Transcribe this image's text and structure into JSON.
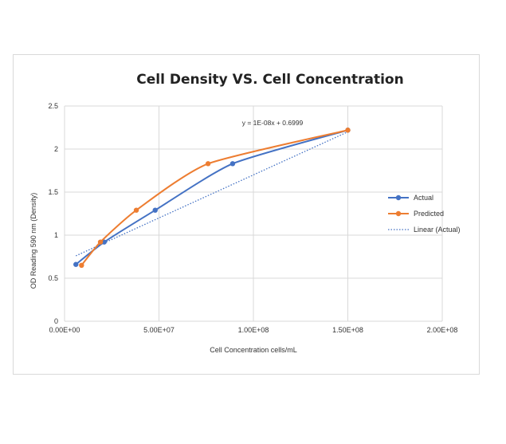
{
  "chart_data": {
    "type": "line",
    "title": "Cell Density VS. Cell Concentration",
    "xlabel": "Cell Concentration cells/mL",
    "ylabel": "OD Reading 590 nm (Density)",
    "xlim": [
      0,
      200000000
    ],
    "ylim": [
      0,
      2.5
    ],
    "x_ticks": [
      0,
      50000000,
      100000000,
      150000000,
      200000000
    ],
    "x_tick_labels": [
      "0.00E+00",
      "5.00E+07",
      "1.00E+08",
      "1.50E+08",
      "2.00E+08"
    ],
    "y_ticks": [
      0,
      0.5,
      1,
      1.5,
      2,
      2.5
    ],
    "y_tick_labels": [
      "0",
      "0.5",
      "1",
      "1.5",
      "2",
      "2.5"
    ],
    "grid": true,
    "legend_position": "right",
    "series": [
      {
        "name": "Actual",
        "color": "#4472C4",
        "smooth": true,
        "x": [
          6000000,
          21000000,
          48000000,
          89000000,
          150000000
        ],
        "y": [
          0.66,
          0.92,
          1.29,
          1.83,
          2.22
        ]
      },
      {
        "name": "Predicted",
        "color": "#ED7D31",
        "smooth": true,
        "x": [
          9000000,
          19000000,
          38000000,
          76000000,
          150000000
        ],
        "y": [
          0.65,
          0.92,
          1.29,
          1.83,
          2.22
        ]
      }
    ],
    "trendline": {
      "name": "Linear (Actual)",
      "color": "#4472C4",
      "style": "dotted",
      "slope": 1e-08,
      "intercept": 0.6999,
      "x_range": [
        6000000,
        150000000
      ],
      "equation": "y = 1E-08x + 0.6999"
    }
  }
}
